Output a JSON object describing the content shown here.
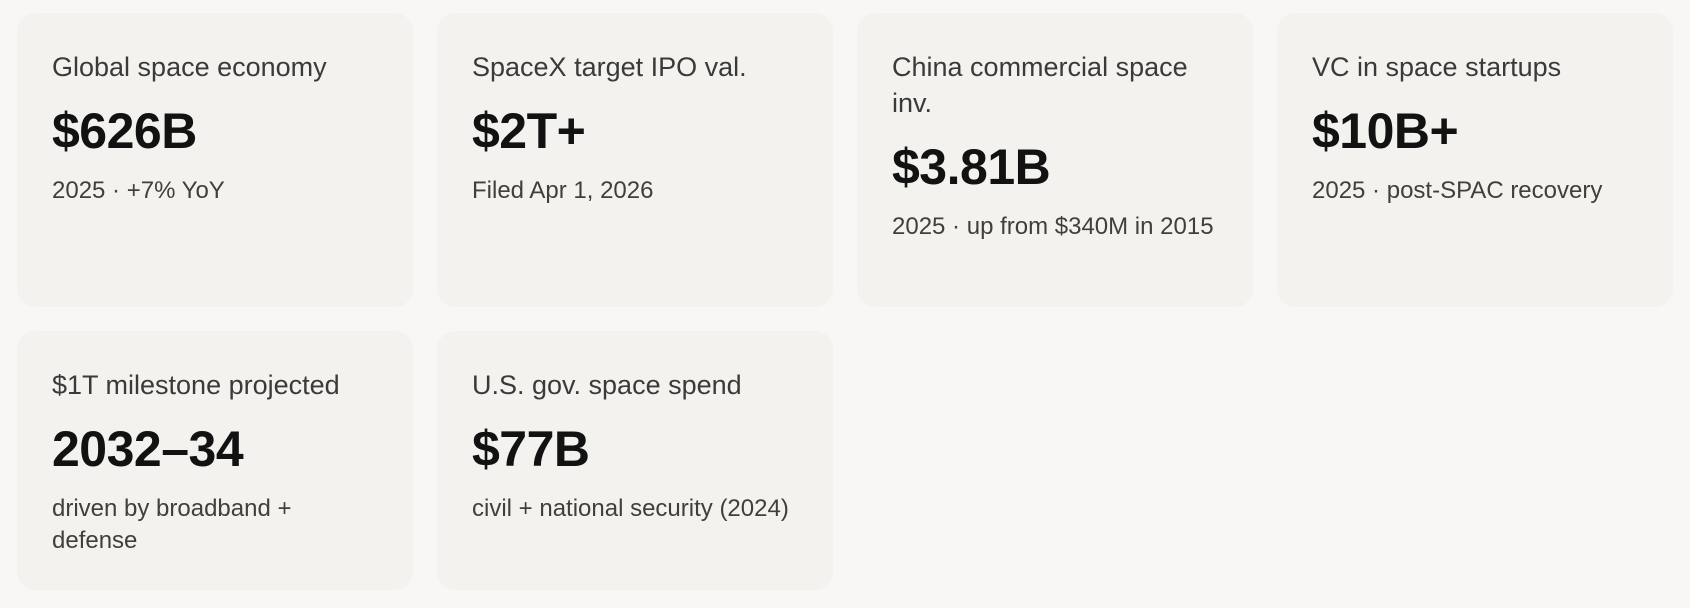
{
  "cards": [
    {
      "label": "Global space economy",
      "value": "$626B",
      "sub": "2025 · +7% YoY"
    },
    {
      "label": "SpaceX target IPO val.",
      "value": "$2T+",
      "sub": "Filed Apr 1, 2026"
    },
    {
      "label": "China commercial space inv.",
      "value": "$3.81B",
      "sub": "2025 · up from $340M in 2015"
    },
    {
      "label": "VC in space startups",
      "value": "$10B+",
      "sub": "2025 · post-SPAC recovery"
    },
    {
      "label": "$1T milestone projected",
      "value": "2032–34",
      "sub": "driven by broadband + defense"
    },
    {
      "label": "U.S. gov. space spend",
      "value": "$77B",
      "sub": "civil + national security (2024)"
    }
  ]
}
